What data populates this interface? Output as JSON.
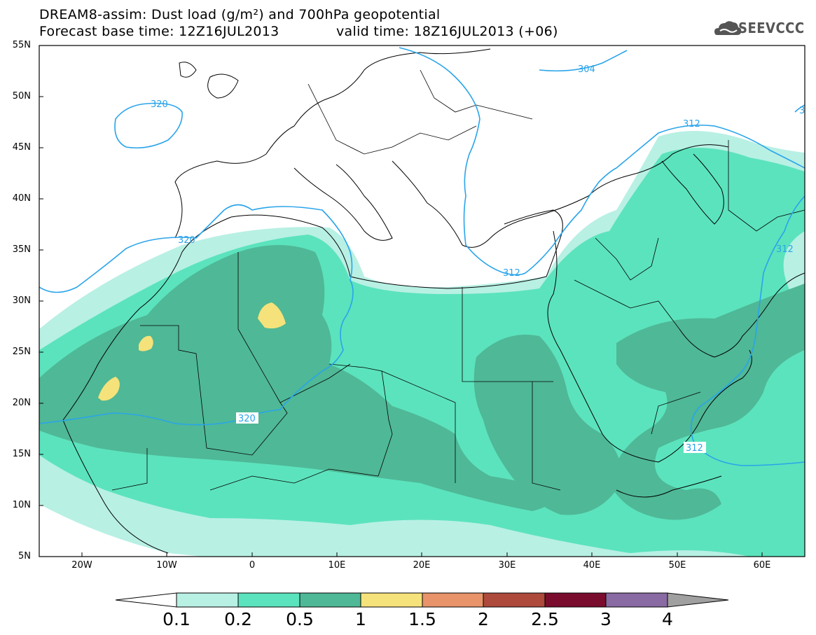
{
  "header": {
    "title_line1": "DREAM8-assim: Dust load (g/m²) and 700hPa geopotential",
    "title_line2": "Forecast base time: 12Z16JUL2013",
    "valid_time": "valid time: 18Z16JUL2013 (+06)",
    "logo_text": "SEEVCCC"
  },
  "map": {
    "lat_labels": [
      "55N",
      "50N",
      "45N",
      "40N",
      "35N",
      "30N",
      "25N",
      "20N",
      "15N",
      "10N",
      "5N"
    ],
    "lon_labels": [
      "20W",
      "10W",
      "0",
      "10E",
      "20E",
      "30E",
      "40E",
      "50E",
      "60E"
    ],
    "contour_labels": [
      "304",
      "320",
      "320",
      "320",
      "312",
      "312",
      "312",
      "312",
      "3"
    ],
    "colors": {
      "land_border": "#000000",
      "contour": "#2aa4ea",
      "c01": "#b8f0e4",
      "c02": "#5be3bd",
      "c05": "#4fb896",
      "c1": "#f6e27a"
    }
  },
  "colorbar": {
    "labels": [
      "0.1",
      "0.2",
      "0.5",
      "1",
      "1.5",
      "2",
      "2.5",
      "3",
      "4"
    ],
    "colors": [
      "#ffffff",
      "#b8f0e4",
      "#5be3bd",
      "#4fb896",
      "#f6e27a",
      "#e8936a",
      "#ad4a3c",
      "#7a0d2e",
      "#8a6aa2",
      "#a0a0a0"
    ]
  }
}
